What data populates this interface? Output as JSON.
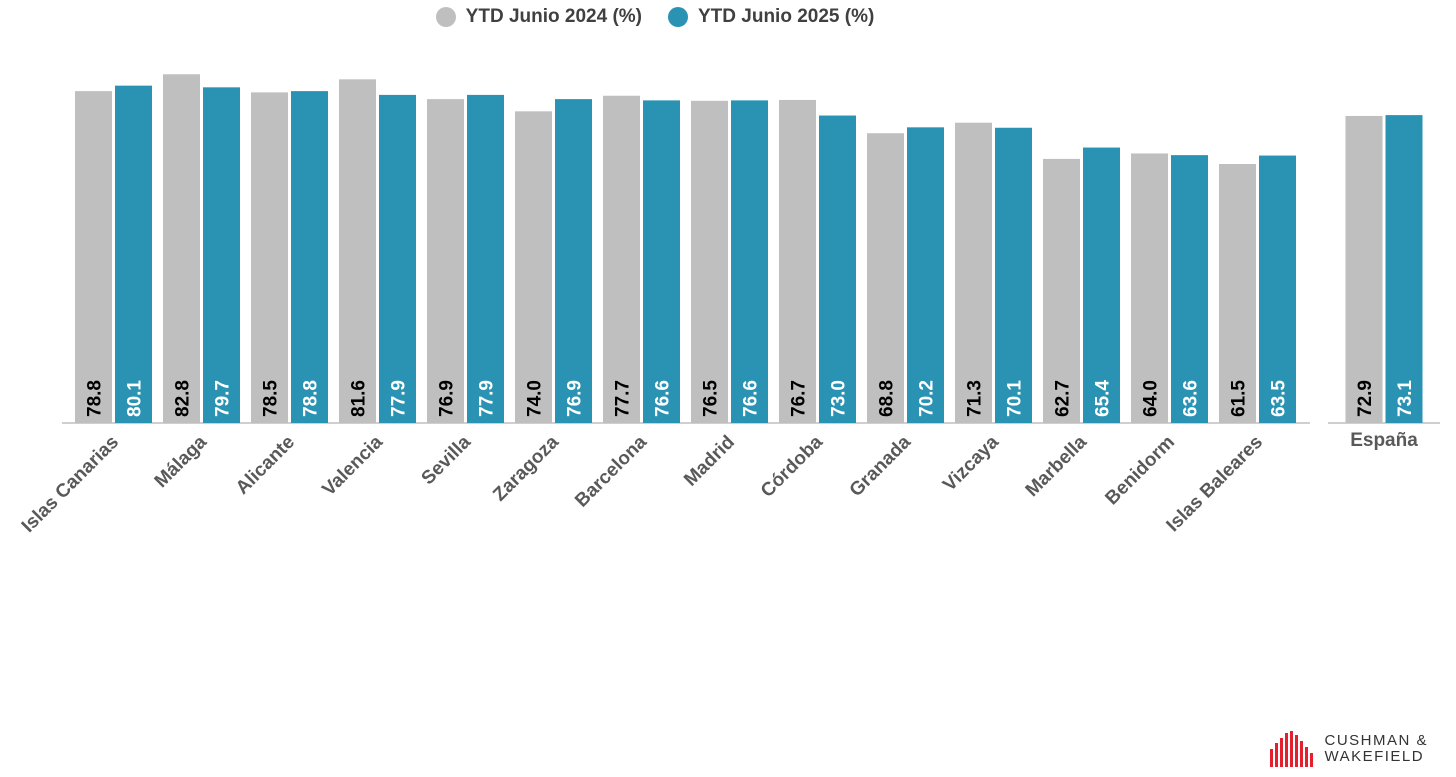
{
  "colors": {
    "series_2024": "#BFBFBF",
    "series_2025": "#2A93B3",
    "axis": "#BFBFBF",
    "label_dark": "#000000",
    "label_light": "#ffffff",
    "category": "#595959"
  },
  "chart_data": {
    "type": "bar",
    "title": "",
    "xlabel": "",
    "ylabel": "",
    "ylim": [
      0,
      85
    ],
    "legend": "top-center",
    "categories": [
      "Islas Canarias",
      "Málaga",
      "Alicante",
      "Valencia",
      "Sevilla",
      "Zaragoza",
      "Barcelona",
      "Madrid",
      "Córdoba",
      "Granada",
      "Vizcaya",
      "Marbella",
      "Benidorm",
      "Islas Baleares"
    ],
    "series": [
      {
        "name": "YTD Junio 2024 (%)",
        "values": [
          78.8,
          82.8,
          78.5,
          81.6,
          76.9,
          74.0,
          77.7,
          76.5,
          76.7,
          68.8,
          71.3,
          62.7,
          64.0,
          61.5
        ]
      },
      {
        "name": "YTD Junio 2025 (%)",
        "values": [
          80.1,
          79.7,
          78.8,
          77.9,
          77.9,
          76.9,
          76.6,
          76.6,
          73.0,
          70.2,
          70.1,
          65.4,
          63.6,
          63.5
        ]
      }
    ],
    "total": {
      "category": "España",
      "values": [
        72.9,
        73.1
      ]
    }
  },
  "logo": {
    "line1": "CUSHMAN &",
    "line2": "WAKEFIELD"
  }
}
